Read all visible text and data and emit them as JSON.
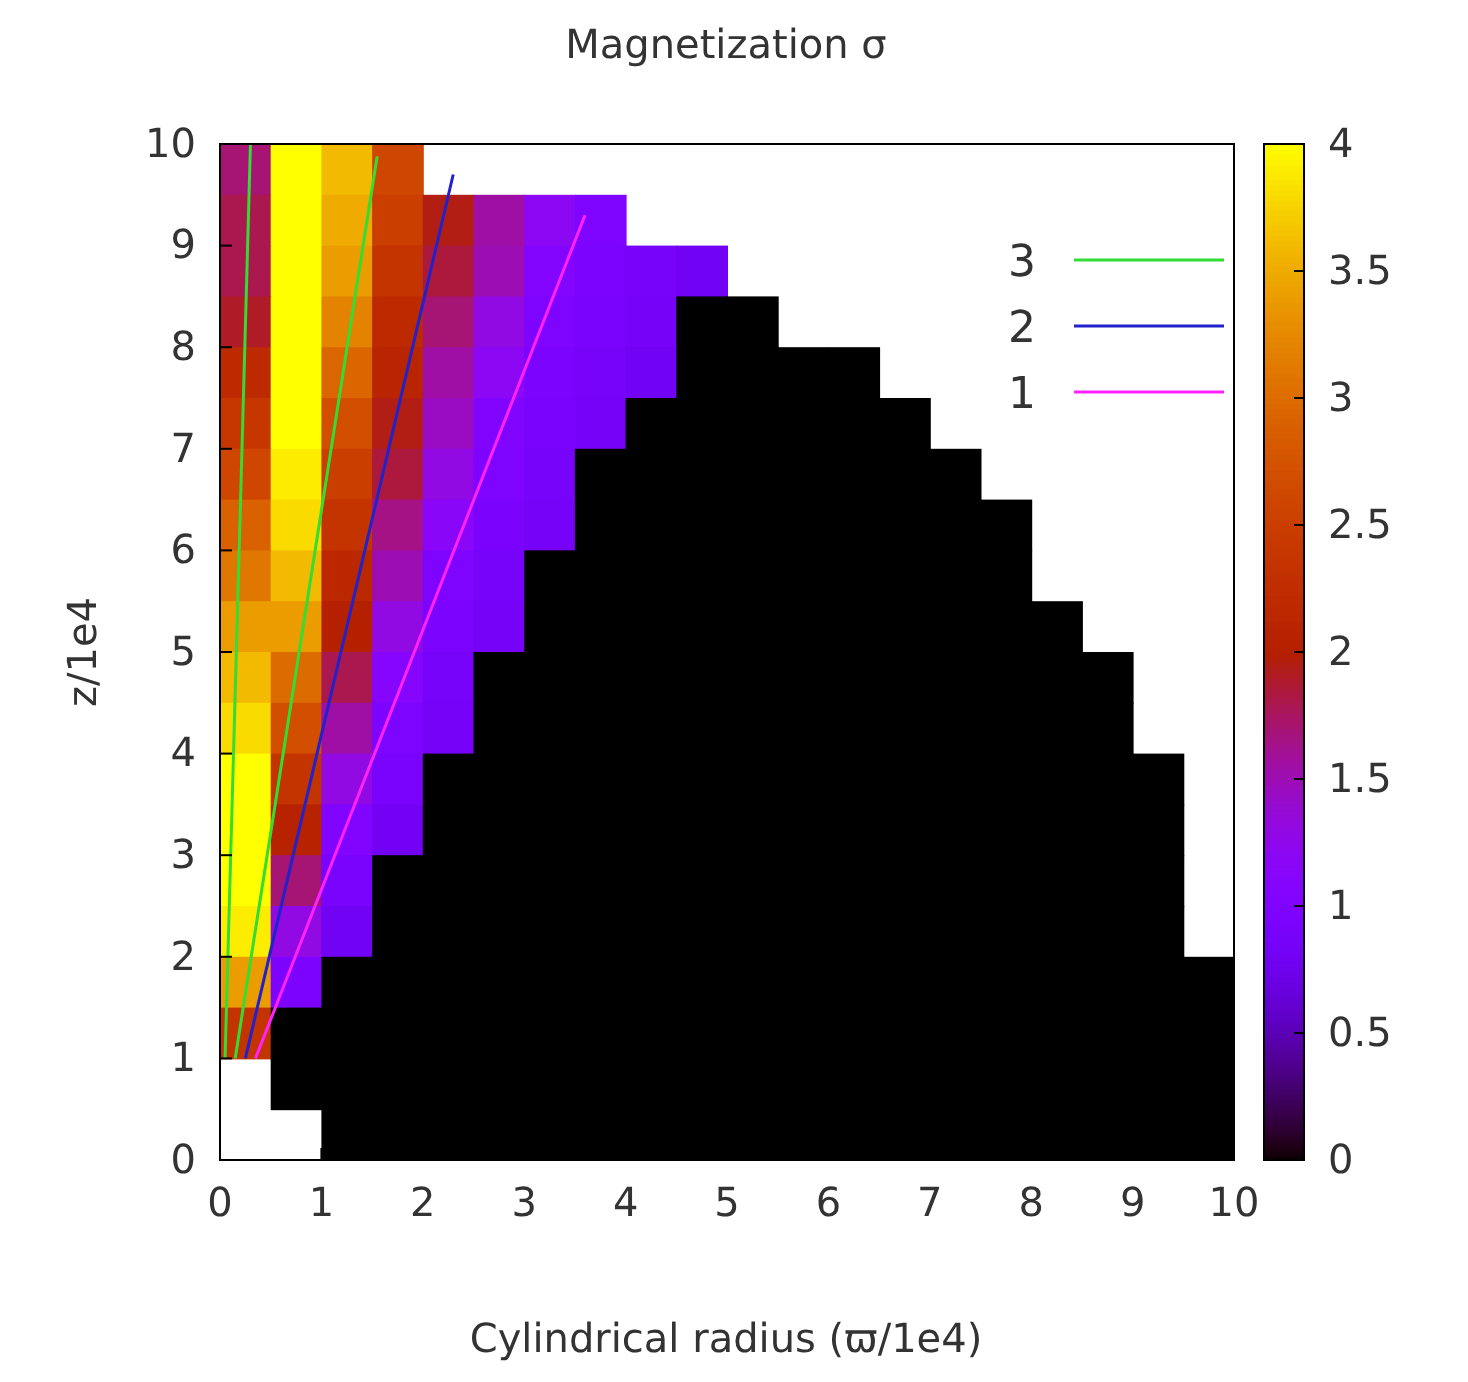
{
  "chart_data": {
    "type": "heatmap",
    "title": "Magnetization σ",
    "xlabel": "Cylindrical radius (ϖ/1e4)",
    "ylabel": "z/1e4",
    "x": [
      0.25,
      0.75,
      1.25,
      1.75,
      2.25,
      2.75,
      3.25,
      3.75,
      4.25,
      4.75,
      5.25,
      5.75,
      6.25,
      6.75,
      7.25,
      7.75,
      8.25,
      8.75,
      9.25,
      9.75
    ],
    "cells": [
      [
        1.7,
        4,
        3.6,
        2.6,
        null,
        null,
        null,
        null,
        null,
        null,
        null,
        null,
        null,
        null,
        null,
        null,
        null,
        null,
        null,
        null
      ],
      [
        1.8,
        4,
        3.5,
        2.5,
        1.95,
        1.55,
        1.2,
        0.97,
        null,
        null,
        null,
        null,
        null,
        null,
        null,
        null,
        null,
        null,
        null,
        null
      ],
      [
        1.8,
        4,
        3.4,
        2.35,
        1.85,
        1.5,
        1.05,
        0.95,
        0.88,
        0.8,
        null,
        null,
        null,
        null,
        null,
        null,
        null,
        null,
        null,
        null
      ],
      [
        1.9,
        4,
        3.2,
        2.2,
        1.7,
        1.3,
        0.98,
        0.9,
        0.85,
        0,
        0,
        null,
        null,
        null,
        null,
        null,
        null,
        null,
        null,
        null
      ],
      [
        2.2,
        4,
        2.95,
        2.1,
        1.55,
        1.2,
        0.95,
        0.88,
        0.8,
        0,
        0,
        0,
        0,
        null,
        null,
        null,
        null,
        null,
        null,
        null
      ],
      [
        2.4,
        4,
        2.7,
        1.95,
        1.45,
        1.02,
        0.9,
        0.85,
        0,
        0,
        0,
        0,
        0,
        0,
        null,
        null,
        null,
        null,
        null,
        null
      ],
      [
        2.6,
        3.9,
        2.5,
        1.85,
        1.3,
        0.97,
        0.88,
        0,
        0,
        0,
        0,
        0,
        0,
        0,
        0,
        null,
        null,
        null,
        null,
        null
      ],
      [
        2.9,
        3.8,
        2.35,
        1.65,
        1.15,
        0.93,
        0.85,
        0,
        0,
        0,
        0,
        0,
        0,
        0,
        0,
        0,
        null,
        null,
        null,
        null
      ],
      [
        3.1,
        3.6,
        2.15,
        1.5,
        0.98,
        0.88,
        0,
        0,
        0,
        0,
        0,
        0,
        0,
        0,
        0,
        0,
        null,
        null,
        null,
        null
      ],
      [
        3.4,
        3.4,
        2,
        1.3,
        0.95,
        0.85,
        0,
        0,
        0,
        0,
        0,
        0,
        0,
        0,
        0,
        0,
        0,
        null,
        null,
        null
      ],
      [
        3.6,
        3,
        1.8,
        1.1,
        0.88,
        0,
        0,
        0,
        0,
        0,
        0,
        0,
        0,
        0,
        0,
        0,
        0,
        0,
        null,
        null
      ],
      [
        3.8,
        2.7,
        1.55,
        0.96,
        0.85,
        0,
        0,
        0,
        0,
        0,
        0,
        0,
        0,
        0,
        0,
        0,
        0,
        0,
        null,
        null
      ],
      [
        4,
        2.35,
        1.3,
        0.9,
        0,
        0,
        0,
        0,
        0,
        0,
        0,
        0,
        0,
        0,
        0,
        0,
        0,
        0,
        0,
        null
      ],
      [
        4,
        2.05,
        1,
        0.82,
        0,
        0,
        0,
        0,
        0,
        0,
        0,
        0,
        0,
        0,
        0,
        0,
        0,
        0,
        0,
        null
      ],
      [
        4,
        1.7,
        0.9,
        0,
        0,
        0,
        0,
        0,
        0,
        0,
        0,
        0,
        0,
        0,
        0,
        0,
        0,
        0,
        0,
        null
      ],
      [
        3.9,
        1.3,
        0.8,
        0,
        0,
        0,
        0,
        0,
        0,
        0,
        0,
        0,
        0,
        0,
        0,
        0,
        0,
        0,
        0,
        null
      ],
      [
        3.4,
        0.95,
        0,
        0,
        0,
        0,
        0,
        0,
        0,
        0,
        0,
        0,
        0,
        0,
        0,
        0,
        0,
        0,
        0,
        0
      ],
      [
        2.35,
        0,
        0,
        0,
        0,
        0,
        0,
        0,
        0,
        0,
        0,
        0,
        0,
        0,
        0,
        0,
        0,
        0,
        0,
        0
      ],
      [
        null,
        0,
        0,
        0,
        0,
        0,
        0,
        0,
        0,
        0,
        0,
        0,
        0,
        0,
        0,
        0,
        0,
        0,
        0,
        0
      ],
      [
        null,
        null,
        0,
        0,
        0,
        0,
        0,
        0,
        0,
        0,
        0,
        0,
        0,
        0,
        0,
        0,
        0,
        0,
        0,
        0
      ]
    ],
    "series": [
      {
        "type": "line",
        "name": "3",
        "color": "#33dd33",
        "x": [
          0.05,
          0.3,
          null,
          0.15,
          1.55
        ],
        "values": [
          1,
          9.99,
          null,
          1,
          9.88
        ]
      },
      {
        "type": "line",
        "name": "2",
        "color": "#2222cc",
        "x": [
          0.25,
          2.3
        ],
        "values": [
          1,
          9.7
        ]
      },
      {
        "type": "line",
        "name": "1",
        "color": "#ff22ff",
        "x": [
          0.35,
          3.6
        ],
        "values": [
          1,
          9.3
        ]
      }
    ],
    "xlim": [
      0,
      10
    ],
    "ylim": [
      0,
      10
    ],
    "xticks": [
      0,
      1,
      2,
      3,
      4,
      5,
      6,
      7,
      8,
      9,
      10
    ],
    "yticks": [
      0,
      1,
      2,
      3,
      4,
      5,
      6,
      7,
      8,
      9,
      10
    ],
    "clim": [
      0,
      4
    ],
    "cticks": [
      0,
      0.5,
      1,
      1.5,
      2,
      2.5,
      3,
      3.5,
      4
    ],
    "legend": "top right",
    "line_style": "solid"
  }
}
